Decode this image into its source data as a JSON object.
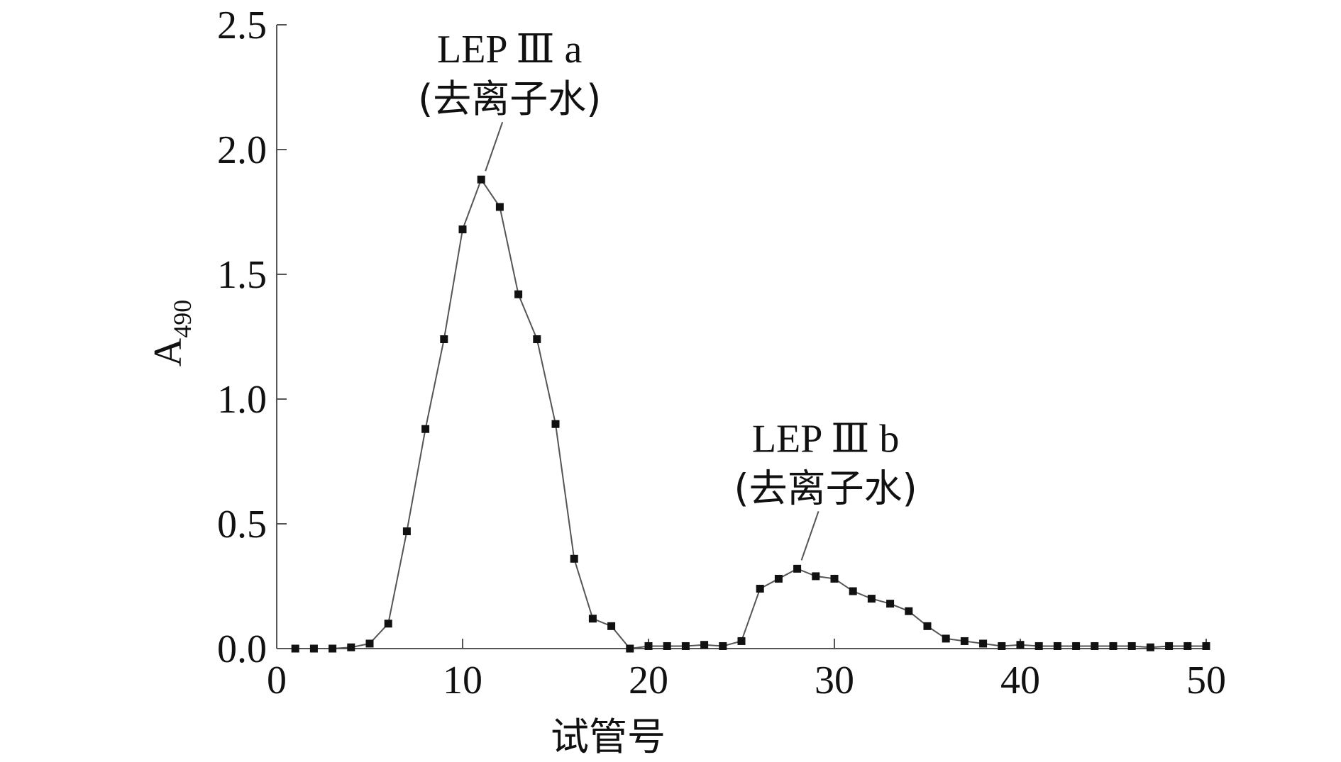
{
  "chart_data": {
    "type": "line",
    "title": "",
    "xlabel": "试管号",
    "ylabel": "A",
    "ylabel_subscript": "490",
    "xlim": [
      0,
      50
    ],
    "ylim": [
      0,
      2.5
    ],
    "xticks": [
      "0",
      "10",
      "20",
      "30",
      "40",
      "50"
    ],
    "yticks": [
      "0.0",
      "0.5",
      "1.0",
      "1.5",
      "2.0",
      "2.5"
    ],
    "grid": false,
    "legend": "none",
    "series": [
      {
        "marker": "square",
        "color": "#111111",
        "line_color": "#555555",
        "x": [
          1,
          2,
          3,
          4,
          5,
          6,
          7,
          8,
          9,
          10,
          11,
          12,
          13,
          14,
          15,
          16,
          17,
          18,
          19,
          20,
          21,
          22,
          23,
          24,
          25,
          26,
          27,
          28,
          29,
          30,
          31,
          32,
          33,
          34,
          35,
          36,
          37,
          38,
          39,
          40,
          41,
          42,
          43,
          44,
          45,
          46,
          47,
          48,
          49,
          50
        ],
        "y": [
          0.0,
          0.0,
          0.0,
          0.005,
          0.02,
          0.1,
          0.47,
          0.88,
          1.24,
          1.68,
          1.88,
          1.77,
          1.42,
          1.24,
          0.9,
          0.36,
          0.12,
          0.09,
          0.0,
          0.01,
          0.01,
          0.01,
          0.015,
          0.01,
          0.03,
          0.24,
          0.28,
          0.32,
          0.29,
          0.28,
          0.23,
          0.2,
          0.18,
          0.15,
          0.09,
          0.04,
          0.03,
          0.02,
          0.01,
          0.015,
          0.01,
          0.01,
          0.01,
          0.01,
          0.01,
          0.01,
          0.005,
          0.01,
          0.01,
          0.01
        ]
      }
    ],
    "annotations": [
      {
        "label_line1": "LEP Ⅲ a",
        "label_line2": "(去离子水)",
        "x": 11,
        "y": 1.88
      },
      {
        "label_line1": "LEP Ⅲ b",
        "label_line2": "(去离子水)",
        "x": 28,
        "y": 0.32
      }
    ]
  }
}
